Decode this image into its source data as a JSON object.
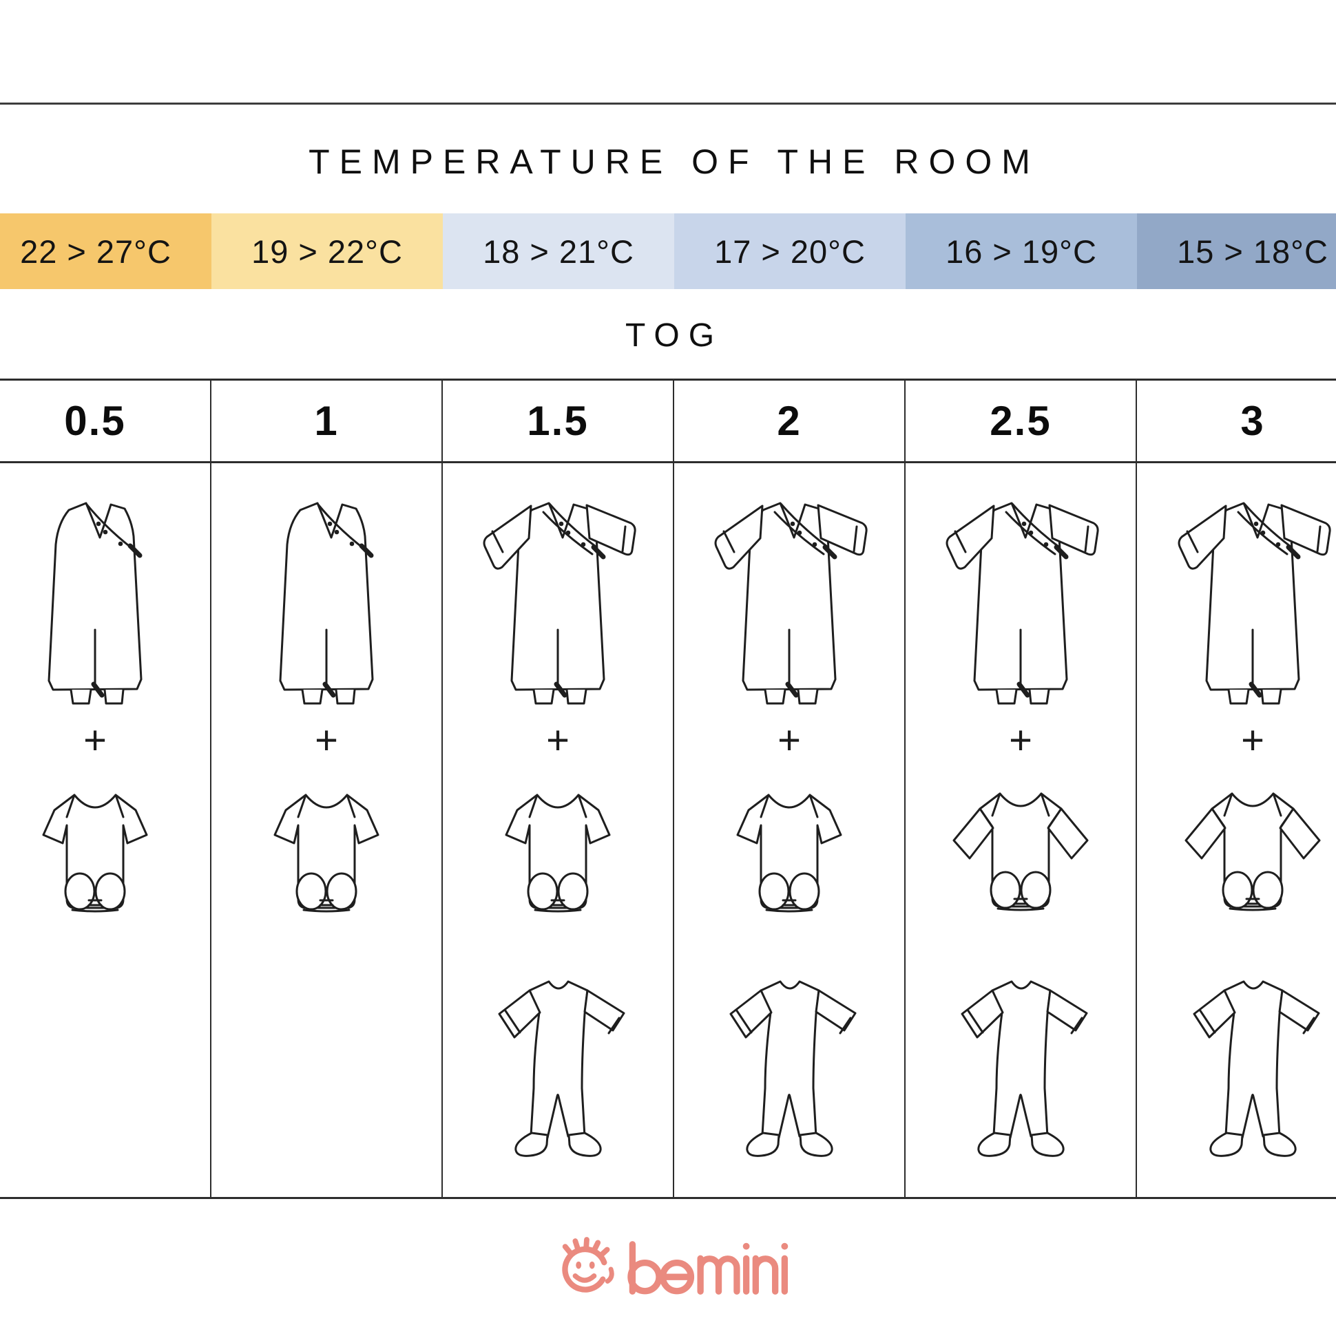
{
  "header": {
    "title": "TEMPERATURE OF THE ROOM"
  },
  "temperature_scale": {
    "cells": [
      {
        "label": "22 > 27°C",
        "color": "#F6C76C"
      },
      {
        "label": "19 > 22°C",
        "color": "#FAE1A0"
      },
      {
        "label": "18 > 21°C",
        "color": "#DCE4F1"
      },
      {
        "label": "17 > 20°C",
        "color": "#C8D5EA"
      },
      {
        "label": "16 > 19°C",
        "color": "#A9BEDA"
      },
      {
        "label": "15 > 18°C",
        "color": "#92A8C7"
      }
    ]
  },
  "tog": {
    "heading": "TOG",
    "plus_sign": "+",
    "columns": [
      {
        "tog": "0.5",
        "sleeping_bag": "sleeveless",
        "bodysuit": "short_sleeve",
        "pajama": false
      },
      {
        "tog": "1",
        "sleeping_bag": "sleeveless",
        "bodysuit": "short_sleeve",
        "pajama": false
      },
      {
        "tog": "1.5",
        "sleeping_bag": "long_sleeve",
        "bodysuit": "short_sleeve",
        "pajama": true
      },
      {
        "tog": "2",
        "sleeping_bag": "long_sleeve",
        "bodysuit": "short_sleeve",
        "pajama": true
      },
      {
        "tog": "2.5",
        "sleeping_bag": "long_sleeve",
        "bodysuit": "long_sleeve",
        "pajama": true
      },
      {
        "tog": "3",
        "sleeping_bag": "long_sleeve",
        "bodysuit": "long_sleeve",
        "pajama": true
      }
    ]
  },
  "footer": {
    "brand": "bemini",
    "brand_color": "#EA8A7F"
  },
  "line_color": "#1e1e1e"
}
